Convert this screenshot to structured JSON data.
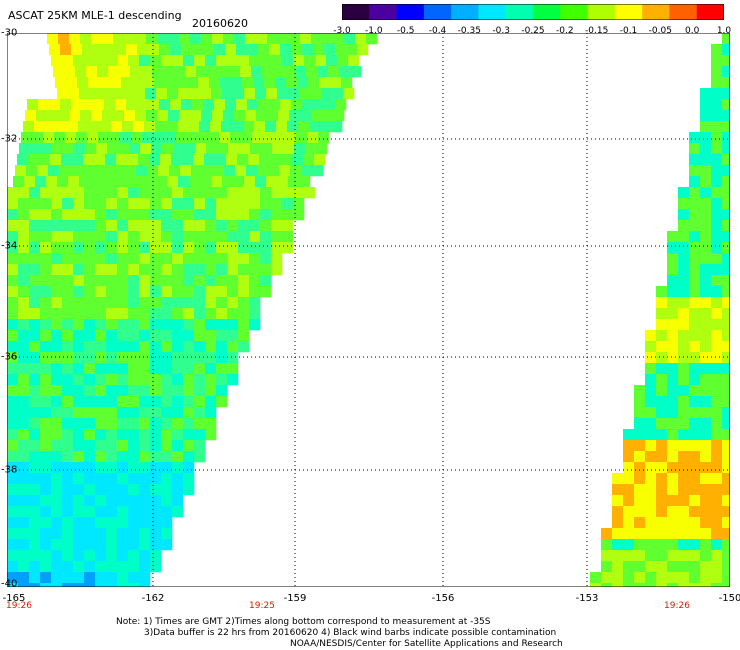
{
  "title": "ASCAT 25KM MLE-1 descending",
  "date": "20160620",
  "colorbar": {
    "labels": [
      "-3.0",
      "-1.0",
      "-0.5",
      "-0.4",
      "-0.35",
      "-0.3",
      "-0.25",
      "-0.2",
      "-0.15",
      "-0.1",
      "-0.05",
      "0.0",
      "1.0"
    ],
    "colors": [
      "#2a0040",
      "#4b00a0",
      "#0000ff",
      "#0066ff",
      "#00b0ff",
      "#00e8ff",
      "#00ffb0",
      "#00ff40",
      "#40ff00",
      "#b0ff00",
      "#ffff00",
      "#ffb000",
      "#ff6000",
      "#ff0000"
    ]
  },
  "axes": {
    "lat_labels": [
      "-30",
      "-32",
      "-34",
      "-36",
      "-38",
      "-40"
    ],
    "lon_labels": [
      "-165",
      "-162",
      "-159",
      "-156",
      "-153",
      "-150"
    ]
  },
  "times": [
    "19:26",
    "19:25",
    "19:26"
  ],
  "notes": {
    "line1": "Note: 1) Times are GMT 2)Times along bottom correspond to measurement at -35S",
    "line2": "3)Data buffer is 22 hrs from 20160620 4) Black wind barbs indicate possible contamination",
    "line3": "NOAA/NESDIS/Center for Satellite Applications and Research"
  },
  "palette": {
    "blue": "#00a0ff",
    "cyan": "#00e8ff",
    "aqua": "#00ffc8",
    "teal": "#30ff90",
    "green": "#60ff30",
    "lime": "#b0ff10",
    "yellow": "#f8ff00",
    "orange": "#ffb000",
    "grid": "#000000"
  }
}
